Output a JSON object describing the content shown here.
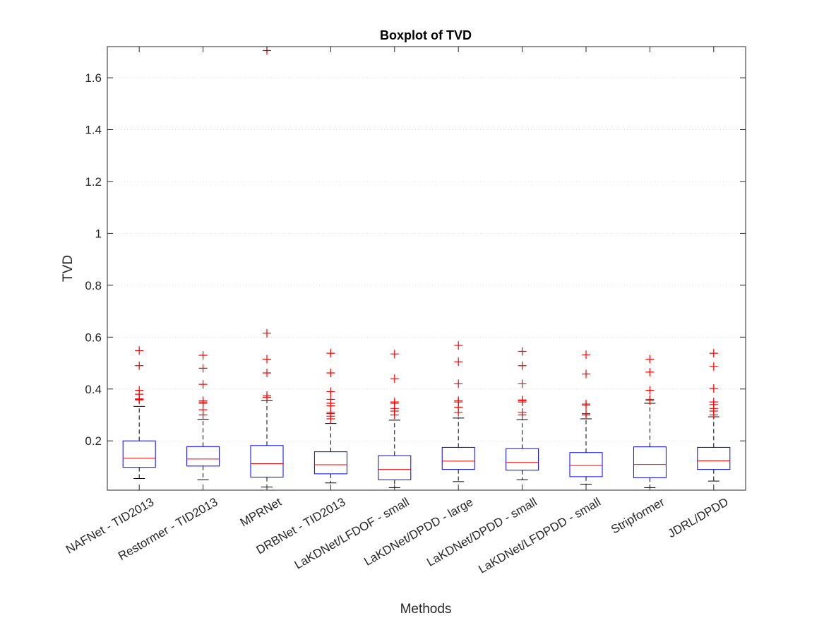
{
  "chart_data": {
    "type": "boxplot",
    "title": "Boxplot of TVD",
    "xlabel": "Methods",
    "ylabel": "TVD",
    "ylim": [
      0.01,
      1.72
    ],
    "yticks": [
      0.2,
      0.4,
      0.6,
      0.8,
      1,
      1.2,
      1.4,
      1.6
    ],
    "ytick_labels": [
      "0.2",
      "0.4",
      "0.6",
      "0.8",
      "1",
      "1.2",
      "1.4",
      "1.6"
    ],
    "grid": "horizontal dotted",
    "colors": {
      "box": "#0000ff",
      "median": "#ff0000",
      "outlier": "#ff0000",
      "whisker": "#000000"
    },
    "categories": [
      "NAFNet - TID2013",
      "Restormer - TID2013",
      "MPRNet",
      "DRBNet - TID2013",
      "LaKDNet/LFDOF - small",
      "LaKDNet/DPDD - large",
      "LaKDNet/DPDD - small",
      "LaKDNet/LFDPDD - small",
      "Stripformer",
      "JDRL/DPDD"
    ],
    "boxes": [
      {
        "whisker_low": 0.055,
        "q1": 0.098,
        "median": 0.133,
        "q3": 0.2,
        "whisker_high": 0.333,
        "outliers": [
          0.548,
          0.49,
          0.395,
          0.38,
          0.362,
          0.36,
          0.358
        ]
      },
      {
        "whisker_low": 0.05,
        "q1": 0.103,
        "median": 0.13,
        "q3": 0.178,
        "whisker_high": 0.283,
        "outliers": [
          0.53,
          0.48,
          0.418,
          0.355,
          0.35,
          0.345,
          0.32,
          0.3
        ]
      },
      {
        "whisker_low": 0.022,
        "q1": 0.06,
        "median": 0.112,
        "q3": 0.182,
        "whisker_high": 0.355,
        "outliers": [
          1.705,
          0.615,
          0.515,
          0.462,
          0.375,
          0.368
        ]
      },
      {
        "whisker_low": 0.038,
        "q1": 0.073,
        "median": 0.108,
        "q3": 0.158,
        "whisker_high": 0.267,
        "outliers": [
          0.538,
          0.462,
          0.39,
          0.36,
          0.345,
          0.335,
          0.31,
          0.305,
          0.295,
          0.285
        ]
      },
      {
        "whisker_low": 0.02,
        "q1": 0.05,
        "median": 0.09,
        "q3": 0.143,
        "whisker_high": 0.28,
        "outliers": [
          0.535,
          0.44,
          0.35,
          0.345,
          0.325,
          0.315,
          0.3
        ]
      },
      {
        "whisker_low": 0.043,
        "q1": 0.09,
        "median": 0.122,
        "q3": 0.175,
        "whisker_high": 0.288,
        "outliers": [
          0.568,
          0.505,
          0.42,
          0.355,
          0.35,
          0.33,
          0.31
        ]
      },
      {
        "whisker_low": 0.05,
        "q1": 0.087,
        "median": 0.117,
        "q3": 0.17,
        "whisker_high": 0.282,
        "outliers": [
          0.545,
          0.49,
          0.42,
          0.358,
          0.355,
          0.35,
          0.31,
          0.3
        ]
      },
      {
        "whisker_low": 0.033,
        "q1": 0.062,
        "median": 0.105,
        "q3": 0.155,
        "whisker_high": 0.285,
        "outliers": [
          0.532,
          0.458,
          0.342,
          0.338,
          0.305,
          0.3
        ]
      },
      {
        "whisker_low": 0.02,
        "q1": 0.058,
        "median": 0.109,
        "q3": 0.177,
        "whisker_high": 0.345,
        "outliers": [
          0.515,
          0.465,
          0.395,
          0.36,
          0.355
        ]
      },
      {
        "whisker_low": 0.045,
        "q1": 0.09,
        "median": 0.123,
        "q3": 0.175,
        "whisker_high": 0.293,
        "outliers": [
          0.538,
          0.487,
          0.402,
          0.35,
          0.34,
          0.325,
          0.315,
          0.3
        ]
      }
    ]
  }
}
